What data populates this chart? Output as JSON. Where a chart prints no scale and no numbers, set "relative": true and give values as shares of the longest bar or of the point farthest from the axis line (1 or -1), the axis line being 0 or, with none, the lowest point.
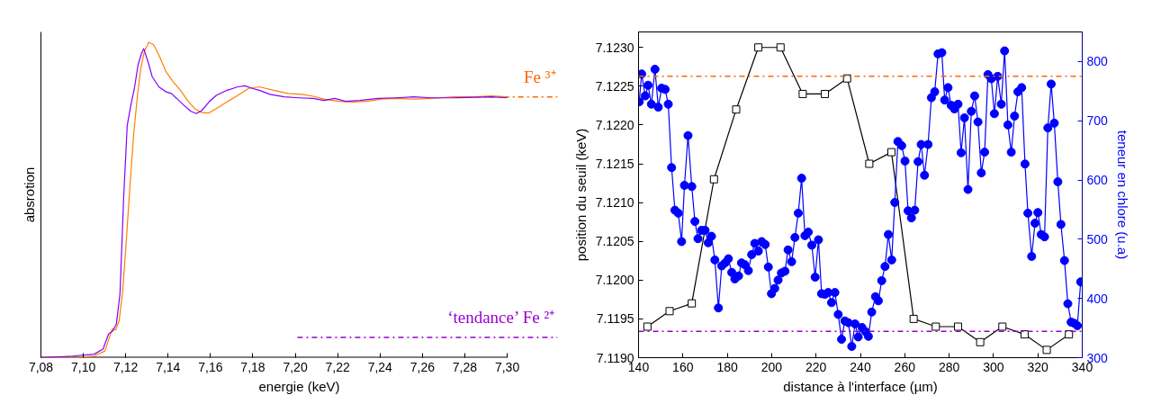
{
  "chart_data": [
    {
      "type": "line",
      "relative": true,
      "xlabel": "energie (keV)",
      "ylabel": "absrotion",
      "xlim": [
        7.08,
        7.3
      ],
      "xticks": [
        {
          "value": 7.08,
          "label": "7,08"
        },
        {
          "value": 7.1,
          "label": "7,10"
        },
        {
          "value": 7.12,
          "label": "7,12"
        },
        {
          "value": 7.14,
          "label": "7,14"
        },
        {
          "value": 7.16,
          "label": "7,16"
        },
        {
          "value": 7.18,
          "label": "7,18"
        },
        {
          "value": 7.2,
          "label": "7,20"
        },
        {
          "value": 7.22,
          "label": "7,22"
        },
        {
          "value": 7.24,
          "label": "7,24"
        },
        {
          "value": 7.26,
          "label": "7,26"
        },
        {
          "value": 7.28,
          "label": "7,28"
        },
        {
          "value": 7.3,
          "label": "7,30"
        }
      ],
      "tick_labels": "x",
      "grid": false,
      "series": [
        {
          "color": "#ff7f00",
          "x": [
            7.08,
            7.0949,
            7.1051,
            7.1102,
            7.1136,
            7.1153,
            7.1169,
            7.1186,
            7.1203,
            7.122,
            7.1237,
            7.1254,
            7.1271,
            7.1288,
            7.1308,
            7.1331,
            7.1356,
            7.139,
            7.1424,
            7.1458,
            7.1492,
            7.1525,
            7.1559,
            7.1593,
            7.1627,
            7.1678,
            7.1729,
            7.178,
            7.1831,
            7.1898,
            7.1966,
            7.2034,
            7.2085,
            7.2136,
            7.2203,
            7.2271,
            7.2339,
            7.2407,
            7.2475,
            7.2559,
            7.2644,
            7.2746,
            7.2847,
            7.2924,
            7.3
          ],
          "values": [
            0,
            0,
            0.005,
            0.021,
            0.091,
            0.088,
            0.117,
            0.213,
            0.374,
            0.544,
            0.704,
            0.822,
            0.918,
            0.971,
            1,
            0.993,
            0.961,
            0.907,
            0.875,
            0.848,
            0.816,
            0.79,
            0.777,
            0.776,
            0.79,
            0.811,
            0.832,
            0.854,
            0.859,
            0.848,
            0.838,
            0.835,
            0.829,
            0.82,
            0.813,
            0.811,
            0.813,
            0.82,
            0.822,
            0.82,
            0.822,
            0.827,
            0.827,
            0.83,
            0.827
          ]
        },
        {
          "color": "#8000ff",
          "x": [
            7.08,
            7.0949,
            7.1051,
            7.1093,
            7.1119,
            7.1139,
            7.1156,
            7.1173,
            7.119,
            7.1207,
            7.1224,
            7.1241,
            7.1258,
            7.1275,
            7.1285,
            7.1305,
            7.1325,
            7.1356,
            7.139,
            7.1415,
            7.1441,
            7.1475,
            7.1508,
            7.1534,
            7.1559,
            7.1593,
            7.1627,
            7.1678,
            7.1729,
            7.1763,
            7.1797,
            7.1831,
            7.1881,
            7.1949,
            7.2017,
            7.2085,
            7.2136,
            7.2186,
            7.2237,
            7.2305,
            7.239,
            7.2475,
            7.2559,
            7.2644,
            7.2746,
            7.2847,
            7.2924,
            7.3
          ],
          "values": [
            0,
            0.005,
            0.011,
            0.027,
            0.075,
            0.085,
            0.107,
            0.203,
            0.502,
            0.736,
            0.8,
            0.854,
            0.928,
            0.966,
            0.98,
            0.939,
            0.891,
            0.859,
            0.843,
            0.838,
            0.822,
            0.8,
            0.781,
            0.774,
            0.784,
            0.811,
            0.832,
            0.848,
            0.859,
            0.862,
            0.854,
            0.848,
            0.835,
            0.827,
            0.824,
            0.822,
            0.816,
            0.822,
            0.813,
            0.816,
            0.822,
            0.824,
            0.827,
            0.824,
            0.824,
            0.826,
            0.827,
            0.824
          ]
        }
      ],
      "ref_lines": [
        {
          "axis": "y",
          "value": 0.827,
          "label": "Fe ³⁺",
          "color": "#ff6600",
          "line_style": "dashdot"
        },
        {
          "axis": "y",
          "value": 0.064,
          "label": "‘tendance’ Fe ²⁺",
          "color": "#9900cc",
          "line_style": "dashdot"
        }
      ]
    },
    {
      "type": "line",
      "xlabel": "distance à l'interface (µm)",
      "ylabel": "position du seuil (keV)",
      "y2label": "teneur en chlore (u.a)",
      "xlim": [
        140,
        340
      ],
      "xticks": [
        140,
        160,
        180,
        200,
        220,
        240,
        260,
        280,
        300,
        320,
        340
      ],
      "ylim": [
        7.119,
        7.1232
      ],
      "yticks": [
        {
          "value": 7.119,
          "label": "7.1190"
        },
        {
          "value": 7.1195,
          "label": "7.1195"
        },
        {
          "value": 7.12,
          "label": "7.1200"
        },
        {
          "value": 7.1205,
          "label": "7.1205"
        },
        {
          "value": 7.121,
          "label": "7.1210"
        },
        {
          "value": 7.1215,
          "label": "7.1215"
        },
        {
          "value": 7.122,
          "label": "7.1220"
        },
        {
          "value": 7.1225,
          "label": "7.1225"
        },
        {
          "value": 7.123,
          "label": "7.1230"
        }
      ],
      "y2lim": [
        300,
        850
      ],
      "y2ticks": [
        300,
        400,
        500,
        600,
        700,
        800
      ],
      "grid": false,
      "series": [
        {
          "color": "#000000",
          "marker": "square",
          "x": [
            144,
            154,
            164,
            174,
            184,
            194,
            204,
            214,
            224,
            234,
            244,
            254,
            264,
            274,
            284,
            294,
            304,
            314,
            324,
            334
          ],
          "values": [
            7.1194,
            7.1196,
            7.1197,
            7.1213,
            7.1222,
            7.123,
            7.123,
            7.1224,
            7.1224,
            7.1226,
            7.1215,
            7.12165,
            7.1195,
            7.1194,
            7.1194,
            7.1192,
            7.1194,
            7.1193,
            7.1191,
            7.1193
          ]
        },
        {
          "color": "#0000ff",
          "marker": "circle",
          "axis": "y2",
          "x": [
            140.3,
            141.4,
            143,
            144.3,
            145.8,
            147.4,
            148.9,
            150.4,
            152,
            153.4,
            154.9,
            156.4,
            157.9,
            159.4,
            160.7,
            162.3,
            164,
            165.4,
            166.8,
            168.4,
            170,
            171.4,
            172.9,
            174.4,
            176,
            177.5,
            179,
            180.5,
            182,
            183.4,
            185.1,
            186.4,
            187.9,
            189.5,
            191,
            192.4,
            194,
            195.5,
            197.1,
            198.5,
            199.9,
            201.4,
            202.9,
            204.4,
            206,
            207.4,
            209,
            210.5,
            212,
            213.5,
            215,
            216.5,
            218.1,
            219.6,
            221.1,
            222.5,
            224,
            225.5,
            227,
            228.5,
            230,
            231.5,
            233,
            234.6,
            236.1,
            237.6,
            239,
            240.7,
            242.3,
            243.6,
            245.1,
            246.8,
            248.1,
            249.6,
            251.1,
            252.6,
            254.1,
            255.5,
            256.9,
            258.6,
            260.1,
            261.5,
            263,
            264.5,
            266,
            267.4,
            268.9,
            270.5,
            272,
            273.5,
            275,
            276.7,
            278,
            279.5,
            280.9,
            282.4,
            284,
            285.4,
            286.9,
            288.5,
            290,
            291.5,
            293,
            294.5,
            296,
            297.5,
            299,
            300.4,
            301.9,
            303.5,
            305,
            306.5,
            308,
            309.5,
            311,
            312.7,
            314.2,
            315.5,
            317.2,
            318.7,
            320,
            321.5,
            323,
            324.5,
            326,
            327.4,
            329,
            330.4,
            332,
            333.5,
            335,
            336.4,
            337.8,
            339.3
          ],
          "values": [
            732,
            779,
            742,
            760,
            728,
            787,
            723,
            755,
            753,
            728,
            621,
            549,
            544,
            496,
            591,
            675,
            589,
            530,
            501,
            515,
            515,
            494,
            505,
            465,
            384,
            455,
            460,
            467,
            444,
            433,
            438,
            460,
            457,
            447,
            474,
            493,
            480,
            496,
            491,
            453,
            408,
            417,
            431,
            443,
            446,
            482,
            462,
            503,
            544,
            603,
            506,
            512,
            490,
            436,
            499,
            408,
            407,
            410,
            393,
            410,
            373,
            331,
            362,
            359,
            319,
            357,
            335,
            351,
            344,
            336,
            377,
            403,
            396,
            430,
            454,
            508,
            465,
            562,
            665,
            658,
            632,
            548,
            536,
            549,
            631,
            660,
            608,
            660,
            739,
            749,
            813,
            815,
            735,
            756,
            726,
            720,
            728,
            646,
            705,
            584,
            716,
            742,
            698,
            612,
            647,
            778,
            771,
            712,
            775,
            728,
            818,
            693,
            647,
            708,
            749,
            756,
            627,
            544,
            471,
            527,
            545,
            508,
            504,
            688,
            762,
            696,
            597,
            525,
            464,
            391,
            360,
            358,
            354,
            428
          ]
        }
      ],
      "ref_lines": [
        {
          "axis": "y",
          "value": 7.12263,
          "color": "#ff6600",
          "line_style": "dashdot"
        },
        {
          "axis": "y",
          "value": 7.11934,
          "color": "#9900cc",
          "line_style": "dashdot"
        }
      ]
    }
  ]
}
